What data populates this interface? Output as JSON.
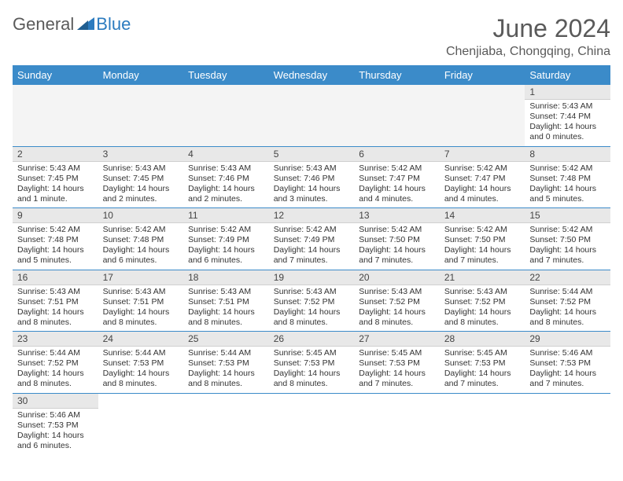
{
  "logo": {
    "text_general": "General",
    "text_blue": "Blue",
    "triangle_color": "#2b7bbf"
  },
  "header": {
    "month_title": "June 2024",
    "location": "Chenjiaba, Chongqing, China"
  },
  "table": {
    "header_bg": "#3b8bc9",
    "header_fg": "#ffffff",
    "border_color": "#3b8bc9",
    "daynum_bg": "#e8e8e8",
    "columns": [
      "Sunday",
      "Monday",
      "Tuesday",
      "Wednesday",
      "Thursday",
      "Friday",
      "Saturday"
    ]
  },
  "weeks": [
    [
      null,
      null,
      null,
      null,
      null,
      null,
      {
        "n": "1",
        "sr": "Sunrise: 5:43 AM",
        "ss": "Sunset: 7:44 PM",
        "dl": "Daylight: 14 hours and 0 minutes."
      }
    ],
    [
      {
        "n": "2",
        "sr": "Sunrise: 5:43 AM",
        "ss": "Sunset: 7:45 PM",
        "dl": "Daylight: 14 hours and 1 minute."
      },
      {
        "n": "3",
        "sr": "Sunrise: 5:43 AM",
        "ss": "Sunset: 7:45 PM",
        "dl": "Daylight: 14 hours and 2 minutes."
      },
      {
        "n": "4",
        "sr": "Sunrise: 5:43 AM",
        "ss": "Sunset: 7:46 PM",
        "dl": "Daylight: 14 hours and 2 minutes."
      },
      {
        "n": "5",
        "sr": "Sunrise: 5:43 AM",
        "ss": "Sunset: 7:46 PM",
        "dl": "Daylight: 14 hours and 3 minutes."
      },
      {
        "n": "6",
        "sr": "Sunrise: 5:42 AM",
        "ss": "Sunset: 7:47 PM",
        "dl": "Daylight: 14 hours and 4 minutes."
      },
      {
        "n": "7",
        "sr": "Sunrise: 5:42 AM",
        "ss": "Sunset: 7:47 PM",
        "dl": "Daylight: 14 hours and 4 minutes."
      },
      {
        "n": "8",
        "sr": "Sunrise: 5:42 AM",
        "ss": "Sunset: 7:48 PM",
        "dl": "Daylight: 14 hours and 5 minutes."
      }
    ],
    [
      {
        "n": "9",
        "sr": "Sunrise: 5:42 AM",
        "ss": "Sunset: 7:48 PM",
        "dl": "Daylight: 14 hours and 5 minutes."
      },
      {
        "n": "10",
        "sr": "Sunrise: 5:42 AM",
        "ss": "Sunset: 7:48 PM",
        "dl": "Daylight: 14 hours and 6 minutes."
      },
      {
        "n": "11",
        "sr": "Sunrise: 5:42 AM",
        "ss": "Sunset: 7:49 PM",
        "dl": "Daylight: 14 hours and 6 minutes."
      },
      {
        "n": "12",
        "sr": "Sunrise: 5:42 AM",
        "ss": "Sunset: 7:49 PM",
        "dl": "Daylight: 14 hours and 7 minutes."
      },
      {
        "n": "13",
        "sr": "Sunrise: 5:42 AM",
        "ss": "Sunset: 7:50 PM",
        "dl": "Daylight: 14 hours and 7 minutes."
      },
      {
        "n": "14",
        "sr": "Sunrise: 5:42 AM",
        "ss": "Sunset: 7:50 PM",
        "dl": "Daylight: 14 hours and 7 minutes."
      },
      {
        "n": "15",
        "sr": "Sunrise: 5:42 AM",
        "ss": "Sunset: 7:50 PM",
        "dl": "Daylight: 14 hours and 7 minutes."
      }
    ],
    [
      {
        "n": "16",
        "sr": "Sunrise: 5:43 AM",
        "ss": "Sunset: 7:51 PM",
        "dl": "Daylight: 14 hours and 8 minutes."
      },
      {
        "n": "17",
        "sr": "Sunrise: 5:43 AM",
        "ss": "Sunset: 7:51 PM",
        "dl": "Daylight: 14 hours and 8 minutes."
      },
      {
        "n": "18",
        "sr": "Sunrise: 5:43 AM",
        "ss": "Sunset: 7:51 PM",
        "dl": "Daylight: 14 hours and 8 minutes."
      },
      {
        "n": "19",
        "sr": "Sunrise: 5:43 AM",
        "ss": "Sunset: 7:52 PM",
        "dl": "Daylight: 14 hours and 8 minutes."
      },
      {
        "n": "20",
        "sr": "Sunrise: 5:43 AM",
        "ss": "Sunset: 7:52 PM",
        "dl": "Daylight: 14 hours and 8 minutes."
      },
      {
        "n": "21",
        "sr": "Sunrise: 5:43 AM",
        "ss": "Sunset: 7:52 PM",
        "dl": "Daylight: 14 hours and 8 minutes."
      },
      {
        "n": "22",
        "sr": "Sunrise: 5:44 AM",
        "ss": "Sunset: 7:52 PM",
        "dl": "Daylight: 14 hours and 8 minutes."
      }
    ],
    [
      {
        "n": "23",
        "sr": "Sunrise: 5:44 AM",
        "ss": "Sunset: 7:52 PM",
        "dl": "Daylight: 14 hours and 8 minutes."
      },
      {
        "n": "24",
        "sr": "Sunrise: 5:44 AM",
        "ss": "Sunset: 7:53 PM",
        "dl": "Daylight: 14 hours and 8 minutes."
      },
      {
        "n": "25",
        "sr": "Sunrise: 5:44 AM",
        "ss": "Sunset: 7:53 PM",
        "dl": "Daylight: 14 hours and 8 minutes."
      },
      {
        "n": "26",
        "sr": "Sunrise: 5:45 AM",
        "ss": "Sunset: 7:53 PM",
        "dl": "Daylight: 14 hours and 8 minutes."
      },
      {
        "n": "27",
        "sr": "Sunrise: 5:45 AM",
        "ss": "Sunset: 7:53 PM",
        "dl": "Daylight: 14 hours and 7 minutes."
      },
      {
        "n": "28",
        "sr": "Sunrise: 5:45 AM",
        "ss": "Sunset: 7:53 PM",
        "dl": "Daylight: 14 hours and 7 minutes."
      },
      {
        "n": "29",
        "sr": "Sunrise: 5:46 AM",
        "ss": "Sunset: 7:53 PM",
        "dl": "Daylight: 14 hours and 7 minutes."
      }
    ],
    [
      {
        "n": "30",
        "sr": "Sunrise: 5:46 AM",
        "ss": "Sunset: 7:53 PM",
        "dl": "Daylight: 14 hours and 6 minutes."
      },
      null,
      null,
      null,
      null,
      null,
      null
    ]
  ]
}
